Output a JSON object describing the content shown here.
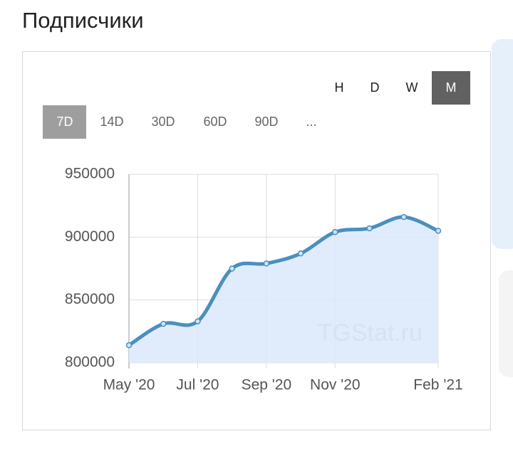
{
  "header": {
    "title": "Подписчики"
  },
  "period_buttons": [
    "H",
    "D",
    "W",
    "M"
  ],
  "selected_period": 3,
  "range_buttons": [
    "7D",
    "14D",
    "30D",
    "60D",
    "90D",
    "..."
  ],
  "selected_range": 0,
  "watermark": "TGStat.ru",
  "chart_data": {
    "type": "area",
    "categories": [
      "May '20",
      null,
      "Jul '20",
      null,
      "Sep '20",
      null,
      "Nov '20",
      null,
      null,
      "Feb '21"
    ],
    "series": [
      {
        "name": "Подписчики",
        "color": "#4a8fc0",
        "values": [
          814000,
          831000,
          833000,
          875000,
          879000,
          887000,
          904000,
          907000,
          916000,
          905000
        ]
      }
    ],
    "ylim": [
      800000,
      950000
    ],
    "yticks": [
      800000,
      850000,
      900000,
      950000
    ],
    "grid": true
  }
}
